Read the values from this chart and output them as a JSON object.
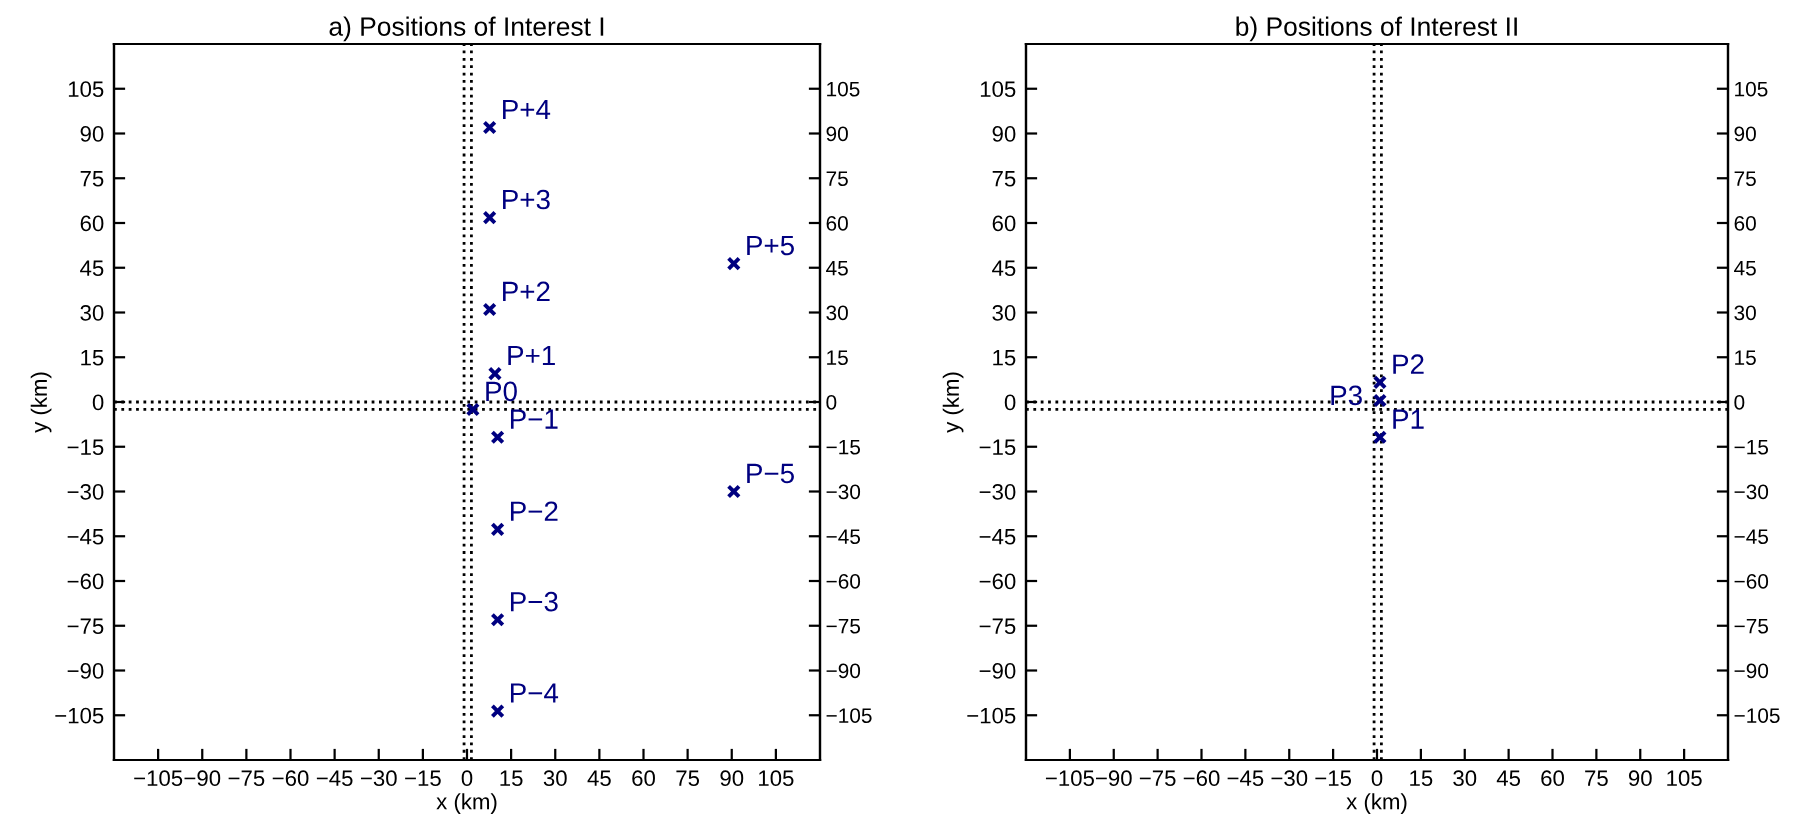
{
  "chart_data": [
    {
      "type": "scatter",
      "title": "a) Positions of Interest I",
      "xlabel": "x (km)",
      "ylabel": "y (km)",
      "marker": "cross",
      "grid": false,
      "legend": false,
      "xlim": [
        -120,
        120
      ],
      "ylim": [
        -120,
        120
      ],
      "y2lim": [
        -120,
        120
      ],
      "xticks": [
        -105,
        -90,
        -75,
        -60,
        -45,
        -30,
        -15,
        0,
        15,
        30,
        45,
        60,
        75,
        90,
        105
      ],
      "yticks": [
        -105,
        -90,
        -75,
        -60,
        -45,
        -30,
        -15,
        0,
        15,
        30,
        45,
        60,
        75,
        90,
        105
      ],
      "y2ticks": [
        -105,
        -90,
        -75,
        -60,
        -45,
        -30,
        -15,
        0,
        15,
        30,
        45,
        60,
        75,
        90,
        105
      ],
      "ref_lines": [
        {
          "axis": "x",
          "value": -1,
          "line_style": "dotted",
          "color": "#000000"
        },
        {
          "axis": "x",
          "value": 1.5,
          "line_style": "dotted",
          "color": "#000000"
        },
        {
          "axis": "y",
          "value": 0,
          "line_style": "dotted",
          "color": "#000000"
        },
        {
          "axis": "y",
          "value": -2.5,
          "line_style": "dotted",
          "color": "#000000"
        }
      ],
      "series": [
        {
          "color": "#000080",
          "x": [
            7.7,
            7.7,
            7.7,
            9.5,
            2,
            10.4,
            10.4,
            10.4,
            10.4,
            90.7,
            90.7
          ],
          "values": [
            92,
            61.8,
            31,
            9.5,
            -2.5,
            -11.8,
            -42.7,
            -73,
            -103.6,
            46.4,
            -30
          ]
        }
      ],
      "annotations": [
        {
          "text": "P+4",
          "x": 7.7,
          "y": 92
        },
        {
          "text": "P+3",
          "x": 7.7,
          "y": 61.8
        },
        {
          "text": "P+2",
          "x": 7.7,
          "y": 31
        },
        {
          "text": "P+1",
          "x": 9.5,
          "y": 9.5
        },
        {
          "text": "P0",
          "x": 2,
          "y": -2.5
        },
        {
          "text": "P−1",
          "x": 10.4,
          "y": -11.8
        },
        {
          "text": "P−2",
          "x": 10.4,
          "y": -42.7
        },
        {
          "text": "P−3",
          "x": 10.4,
          "y": -73
        },
        {
          "text": "P−4",
          "x": 10.4,
          "y": -103.6
        },
        {
          "text": "P+5",
          "x": 90.7,
          "y": 46.4
        },
        {
          "text": "P−5",
          "x": 90.7,
          "y": -30
        }
      ]
    },
    {
      "type": "scatter",
      "title": "b) Positions of Interest II",
      "xlabel": "x (km)",
      "ylabel": "y (km)",
      "marker": "cross",
      "grid": false,
      "legend": false,
      "xlim": [
        -120,
        120
      ],
      "ylim": [
        -120,
        120
      ],
      "y2lim": [
        -120,
        120
      ],
      "xticks": [
        -105,
        -90,
        -75,
        -60,
        -45,
        -30,
        -15,
        0,
        15,
        30,
        45,
        60,
        75,
        90,
        105
      ],
      "yticks": [
        -105,
        -90,
        -75,
        -60,
        -45,
        -30,
        -15,
        0,
        15,
        30,
        45,
        60,
        75,
        90,
        105
      ],
      "y2ticks": [
        -105,
        -90,
        -75,
        -60,
        -45,
        -30,
        -15,
        0,
        15,
        30,
        45,
        60,
        75,
        90,
        105
      ],
      "ref_lines": [
        {
          "axis": "x",
          "value": -1,
          "line_style": "dotted",
          "color": "#000000"
        },
        {
          "axis": "x",
          "value": 1.5,
          "line_style": "dotted",
          "color": "#000000"
        },
        {
          "axis": "y",
          "value": 0,
          "line_style": "dotted",
          "color": "#000000"
        },
        {
          "axis": "y",
          "value": -2.5,
          "line_style": "dotted",
          "color": "#000000"
        }
      ],
      "series": [
        {
          "color": "#000080",
          "x": [
            1,
            1,
            1
          ],
          "values": [
            -11.8,
            6.6,
            0.5
          ]
        }
      ],
      "annotations": [
        {
          "text": "P1",
          "x": 1,
          "y": -11.8
        },
        {
          "text": "P2",
          "x": 1,
          "y": 6.6
        },
        {
          "text": "P3",
          "x": 0,
          "y": 0.5
        }
      ]
    }
  ]
}
